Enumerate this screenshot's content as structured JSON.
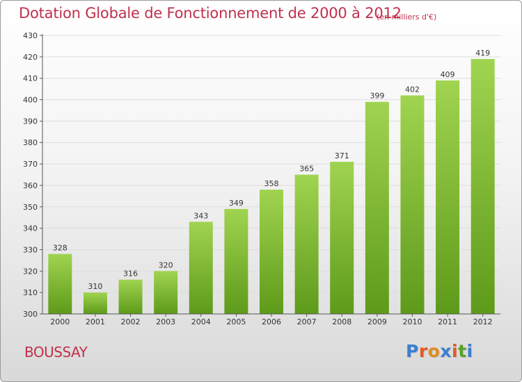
{
  "title": "Dotation Globale de Fonctionnement de 2000 à 2012",
  "subtitle": "(en milliers d'€)",
  "commune": "BOUSSAY",
  "logo": {
    "text": "Proxiti",
    "letter_colors": [
      "#3a7fd0",
      "#e05a20",
      "#e08a20",
      "#3a7fd0",
      "#e05a20",
      "#5aa02c",
      "#3a7fd0"
    ]
  },
  "colors": {
    "bar_top": "#a0d450",
    "bar_bottom": "#5e9a1a",
    "grid": "#dddddd",
    "axis": "#555555",
    "accent": "#c0304c"
  },
  "chart_data": {
    "type": "bar",
    "title": "Dotation Globale de Fonctionnement de 2000 à 2012",
    "subtitle": "(en milliers d'€)",
    "categories": [
      "2000",
      "2001",
      "2002",
      "2003",
      "2004",
      "2005",
      "2006",
      "2007",
      "2008",
      "2009",
      "2010",
      "2011",
      "2012"
    ],
    "values": [
      328,
      310,
      316,
      320,
      343,
      349,
      358,
      365,
      371,
      399,
      402,
      409,
      419
    ],
    "ylim": [
      300,
      430
    ],
    "yticks": [
      300,
      310,
      320,
      330,
      340,
      350,
      360,
      370,
      380,
      390,
      400,
      410,
      420,
      430
    ],
    "grid": true,
    "data_labels": true
  }
}
